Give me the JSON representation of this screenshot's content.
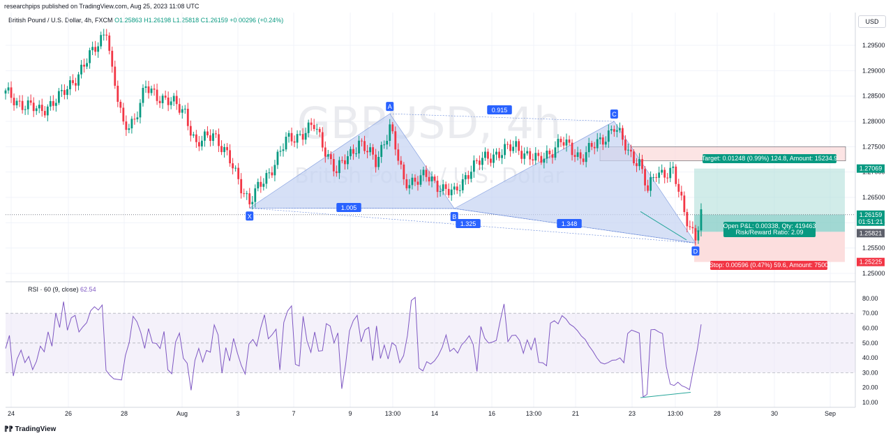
{
  "header": {
    "published": "researchpips published on TradingView.com, Aug 25, 2023 11:08 UTC"
  },
  "symbol": {
    "name": "British Pound / U.S. Dollar, 4h, FXCM",
    "ohlc": "O1.25863 H1.26198 L1.25818 C1.26159 +0.00296 (+0.24%)"
  },
  "currency_button": "USD",
  "watermark": {
    "line1": "GBPUSD, 4h",
    "line2": "British Pound / U.S. Dollar"
  },
  "pattern": {
    "points": [
      "X",
      "A",
      "B",
      "C",
      "D"
    ],
    "ratios": [
      "0.915",
      "1.005",
      "1.325",
      "1.348"
    ]
  },
  "position": {
    "target_label": "Target: 0.01248 (0.99%) 124.8, Amount: 15234.9",
    "open_label": "Open P&L: 0.00338, Qty: 419463",
    "rr_label": "Risk/Reward Ratio: 2.09",
    "stop_label": "Stop: 0.00596 (0.47%) 59.6, Amount: 7500"
  },
  "price_axis": {
    "ticks": [
      "1.29500",
      "1.29000",
      "1.28500",
      "1.28000",
      "1.27500",
      "1.27000",
      "1.26500",
      "1.26000",
      "1.25500",
      "1.25000"
    ],
    "badges": {
      "target": "1.27069",
      "last": "1.26159",
      "countdown": "01:51:21",
      "entry": "1.25821",
      "stop": "1.25225"
    }
  },
  "rsi": {
    "label": "RSI · 60 (9, close)",
    "value": "62.54",
    "ticks": [
      "80.00",
      "70.00",
      "60.00",
      "50.00",
      "40.00",
      "30.00",
      "20.00",
      "10.00"
    ]
  },
  "time_axis": {
    "labels": [
      "24",
      "26",
      "28",
      "Aug",
      "3",
      "7",
      "9",
      "13:00",
      "14",
      "16",
      "13:00",
      "21",
      "23",
      "13:00",
      "28",
      "30",
      "Sep"
    ]
  },
  "footer": "TradingView",
  "colors": {
    "up": "#089981",
    "down": "#f23645",
    "pattern_fill": "#c5d3f3",
    "pattern_line": "#5b7fd6",
    "label_blue": "#2962ff",
    "rsi_line": "#7e57c2",
    "target_zone": "#b2dfdb",
    "stop_zone": "#fcdada"
  },
  "chart_data": {
    "type": "candlestick",
    "price_range": [
      1.2475,
      1.2985
    ],
    "rsi_range": [
      5,
      88
    ],
    "harmonic_points": [
      {
        "label": "X",
        "bar": 87,
        "price": 1.2629
      },
      {
        "label": "A",
        "bar": 137,
        "price": 1.2815
      },
      {
        "label": "B",
        "bar": 160,
        "price": 1.2628
      },
      {
        "label": "C",
        "bar": 217,
        "price": 1.28
      },
      {
        "label": "D",
        "bar": 246,
        "price": 1.256
      }
    ],
    "position": {
      "entry": 1.25821,
      "target": 1.27069,
      "stop": 1.25225,
      "last": 1.26159
    },
    "rsi_values": [
      46.3,
      55.1,
      27.8,
      39.4,
      45.2,
      36.8,
      41.0,
      32.1,
      37.7,
      47.9,
      44.1,
      57.5,
      47.8,
      70.2,
      60.4,
      77.9,
      58.6,
      67.0,
      68.6,
      57.4,
      60.9,
      63.7,
      71.7,
      74.4,
      72.2,
      75.6,
      31.6,
      28.3,
      25.9,
      25.5,
      25.1,
      41.5,
      50.3,
      68.0,
      64.3,
      56.9,
      46.4,
      59.7,
      50.1,
      49.7,
      46.3,
      57.8,
      32.0,
      29.3,
      50.7,
      56.7,
      39.7,
      36.4,
      18.2,
      38.3,
      46.4,
      37.2,
      45.0,
      43.8,
      62.2,
      55.5,
      29.7,
      46.9,
      37.9,
      53.1,
      43.2,
      34.9,
      29.1,
      49.4,
      52.4,
      47.9,
      60.0,
      69.0,
      52.8,
      55.7,
      59.3,
      31.8,
      63.9,
      71.6,
      75.0,
      35.7,
      34.5,
      68.0,
      51.5,
      43.7,
      57.4,
      44.5,
      44.9,
      63.0,
      61.4,
      50.1,
      56.8,
      19.2,
      35.6,
      58.1,
      65.1,
      68.6,
      50.7,
      58.8,
      60.5,
      38.1,
      61.5,
      39.6,
      48.6,
      39.2,
      50.2,
      48.1,
      36.7,
      41.5,
      55.0,
      78.6,
      80.7,
      33.1,
      31.2,
      37.4,
      35.8,
      38.0,
      41.7,
      47.2,
      55.4,
      44.3,
      46.5,
      43.2,
      48.7,
      51.4,
      54.9,
      49.1,
      30.9,
      61.1,
      53.2,
      50.0,
      50.6,
      51.8,
      64.7,
      76.3,
      50.9,
      55.0,
      55.3,
      51.8,
      43.1,
      52.0,
      45.5,
      53.5,
      36.9,
      36.7,
      34.7,
      63.4,
      65.0,
      62.9,
      68.4,
      66.3,
      62.7,
      61.0,
      58.3,
      54.7,
      52.4,
      48.0,
      44.4,
      40.1,
      36.8,
      35.9,
      36.9,
      38.4,
      38.6,
      40.0,
      36.7,
      56.4,
      58.7,
      57.7,
      56.7,
      13.7,
      15.4,
      58.9,
      59.1,
      57.5,
      56.4,
      34.1,
      22.3,
      21.4,
      23.6,
      21.2,
      20.2,
      18.6,
      32.3,
      45.3,
      62.54
    ]
  }
}
